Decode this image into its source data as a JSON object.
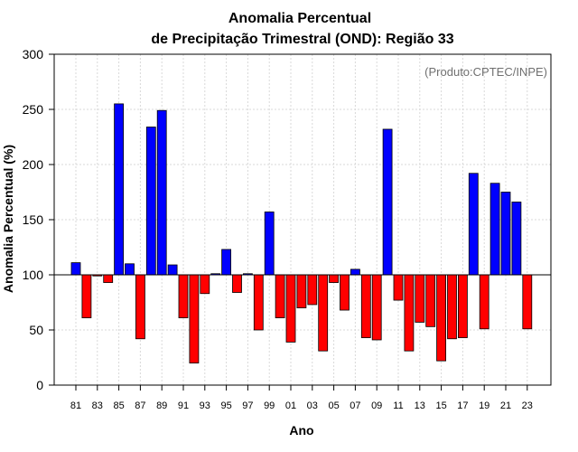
{
  "chart_data": {
    "type": "bar",
    "title": "Anomalia Percentual",
    "subtitle": "de Precipitação Trimestral (OND): Região 33",
    "credit": "(Produto:CPTEC/INPE)",
    "xlabel": "Ano",
    "ylabel": "Anomalia Percentual (%)",
    "ylim": [
      0,
      300
    ],
    "yticks": [
      0,
      50,
      100,
      150,
      200,
      250,
      300
    ],
    "baseline": 100,
    "grid": true,
    "colors": {
      "above": "#0000ff",
      "below": "#ff0000",
      "edge": "#000000",
      "grid": "#d9d9d9"
    },
    "categories": [
      "81",
      "82",
      "83",
      "84",
      "85",
      "86",
      "87",
      "88",
      "89",
      "90",
      "91",
      "92",
      "93",
      "94",
      "95",
      "96",
      "97",
      "98",
      "99",
      "00",
      "01",
      "02",
      "03",
      "04",
      "05",
      "06",
      "07",
      "08",
      "09",
      "10",
      "11",
      "12",
      "13",
      "14",
      "15",
      "16",
      "17",
      "18",
      "19",
      "20",
      "21",
      "22",
      "23"
    ],
    "tick_labels": [
      "81",
      "83",
      "85",
      "87",
      "89",
      "91",
      "93",
      "95",
      "97",
      "99",
      "01",
      "03",
      "05",
      "07",
      "09",
      "11",
      "13",
      "15",
      "17",
      "19",
      "21",
      "23"
    ],
    "values": [
      111,
      61,
      99,
      93,
      255,
      110,
      42,
      234,
      249,
      109,
      61,
      20,
      83,
      101,
      123,
      84,
      101,
      50,
      157,
      61,
      39,
      70,
      73,
      31,
      93,
      68,
      105,
      43,
      41,
      232,
      77,
      31,
      57,
      53,
      22,
      42,
      43,
      192,
      51,
      183,
      175,
      166,
      51
    ]
  }
}
